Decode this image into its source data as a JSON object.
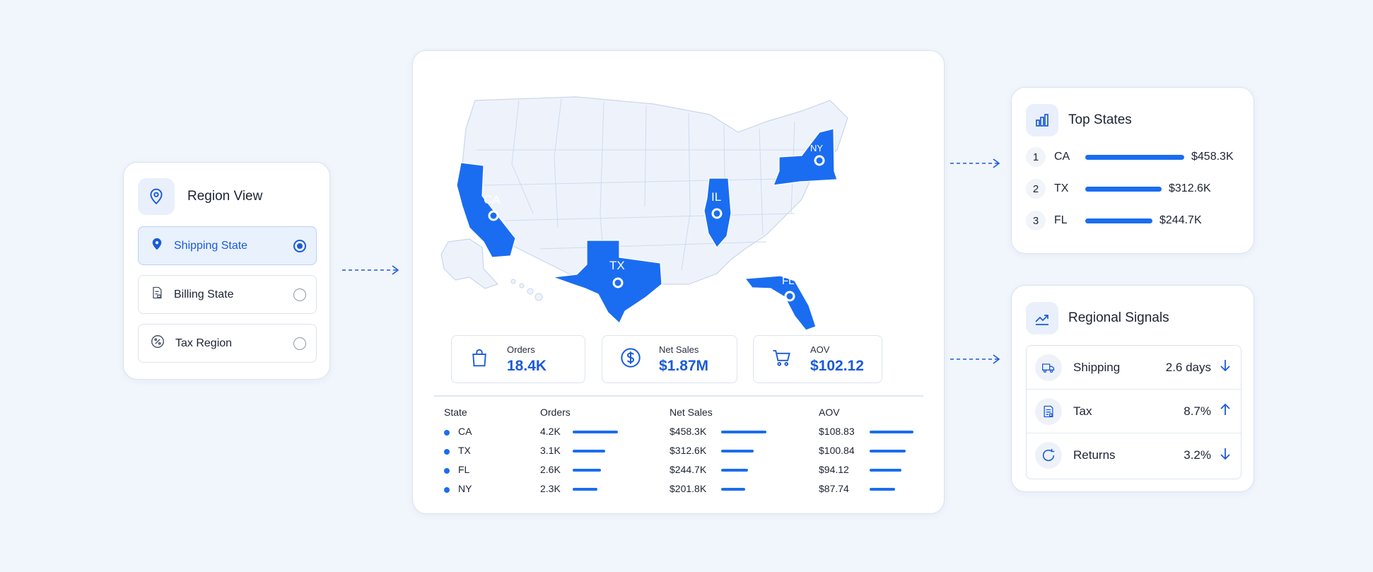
{
  "region_view": {
    "title": "Region View",
    "header_icon": "location-pin-icon",
    "options": [
      {
        "label": "Shipping State",
        "icon": "location-pin-icon",
        "selected": true
      },
      {
        "label": "Billing State",
        "icon": "invoice-icon",
        "selected": false
      },
      {
        "label": "Tax Region",
        "icon": "percent-badge-icon",
        "selected": false
      }
    ]
  },
  "map": {
    "labels": {
      "ca": "CA",
      "tx": "TX",
      "il": "IL",
      "fl": "FL",
      "ny": "NY"
    },
    "highlight_color": "#1a6df0",
    "land_color": "#eef3fb",
    "border_color": "#c9d6ec"
  },
  "kpis": [
    {
      "label": "Orders",
      "value": "18.4K",
      "icon": "shopping-bag-icon"
    },
    {
      "label": "Net Sales",
      "value": "$1.87M",
      "icon": "dollar-circle-icon"
    },
    {
      "label": "AOV",
      "value": "$102.12",
      "icon": "shopping-cart-icon"
    }
  ],
  "table": {
    "headers": {
      "state": "State",
      "orders": "Orders",
      "net_sales": "Net Sales",
      "aov": "AOV"
    },
    "rows": [
      {
        "state": "CA",
        "orders": "4.2K",
        "net_sales": "$458.3K",
        "aov": "$108.83",
        "orders_bar": 1.0,
        "sales_bar": 1.0,
        "aov_bar": 1.0
      },
      {
        "state": "TX",
        "orders": "3.1K",
        "net_sales": "$312.6K",
        "aov": "$100.84",
        "orders_bar": 0.72,
        "sales_bar": 0.72,
        "aov_bar": 0.82
      },
      {
        "state": "FL",
        "orders": "2.6K",
        "net_sales": "$244.7K",
        "aov": "$94.12",
        "orders_bar": 0.62,
        "sales_bar": 0.6,
        "aov_bar": 0.72
      },
      {
        "state": "NY",
        "orders": "2.3K",
        "net_sales": "$201.8K",
        "aov": "$87.74",
        "orders_bar": 0.54,
        "sales_bar": 0.53,
        "aov_bar": 0.58
      }
    ]
  },
  "top_states": {
    "title": "Top States",
    "icon": "bar-chart-icon",
    "items": [
      {
        "rank": "1",
        "state": "CA",
        "value": "$458.3K",
        "share": 1.0
      },
      {
        "rank": "2",
        "state": "TX",
        "value": "$312.6K",
        "share": 0.77
      },
      {
        "rank": "3",
        "state": "FL",
        "value": "$244.7K",
        "share": 0.68
      }
    ]
  },
  "regional_signals": {
    "title": "Regional Signals",
    "icon": "trend-line-icon",
    "items": [
      {
        "label": "Shipping",
        "value": "2.6 days",
        "icon": "truck-icon",
        "trend": "down"
      },
      {
        "label": "Tax",
        "value": "8.7%",
        "icon": "receipt-icon",
        "trend": "up"
      },
      {
        "label": "Returns",
        "value": "3.2%",
        "icon": "refresh-icon",
        "trend": "down"
      }
    ]
  },
  "colors": {
    "accent": "#1a5bd8",
    "bar": "#1a6df0",
    "background": "#f1f5fc"
  }
}
